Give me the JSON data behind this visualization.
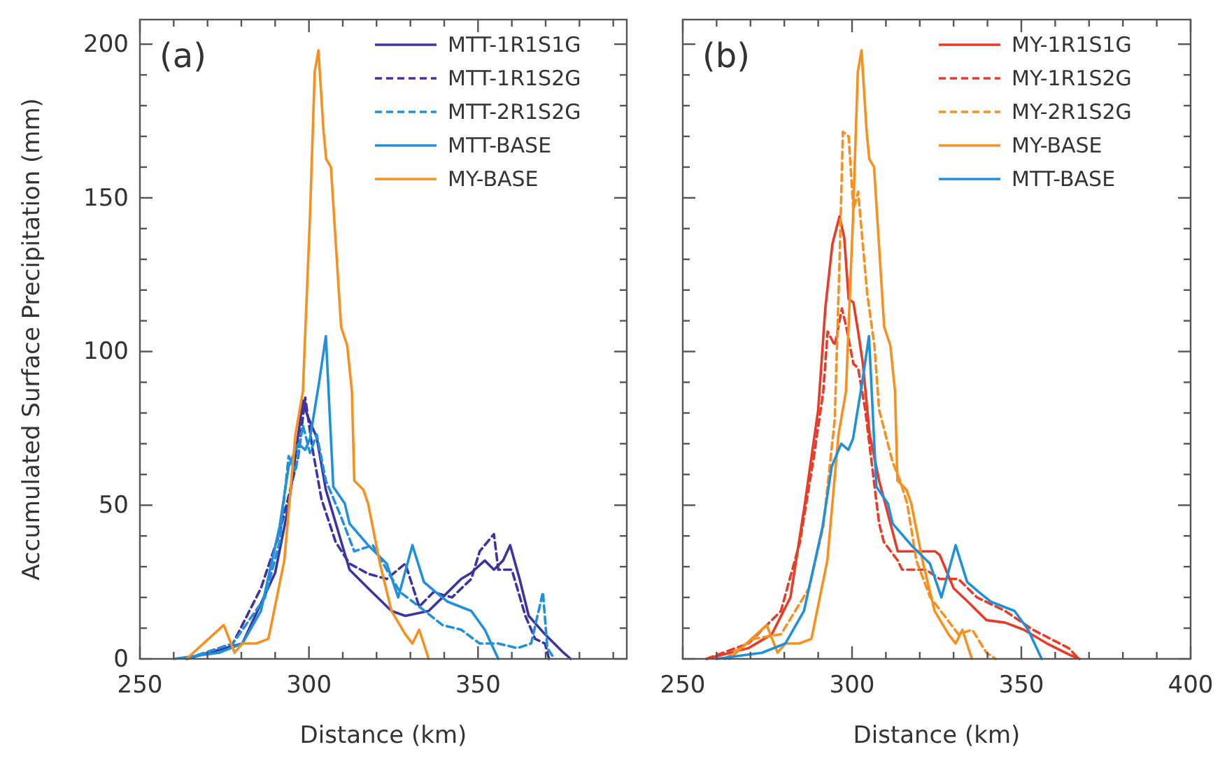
{
  "chart_data": [
    {
      "type": "line",
      "xlabel": "Distance (km)",
      "ylabel": "Accumulated Surface Precipitation (mm)",
      "annotations": [
        "(a)"
      ],
      "legend": "top right",
      "grid": false,
      "xlim": [
        250,
        394
      ],
      "xticks": [
        250,
        {
          "value": 260,
          "label": null
        },
        {
          "value": 270,
          "label": null
        },
        {
          "value": 280,
          "label": null
        },
        {
          "value": 290,
          "label": null
        },
        300,
        {
          "value": 310,
          "label": null
        },
        {
          "value": 320,
          "label": null
        },
        {
          "value": 330,
          "label": null
        },
        {
          "value": 340,
          "label": null
        },
        350,
        {
          "value": 360,
          "label": null
        },
        {
          "value": 370,
          "label": null
        },
        {
          "value": 380,
          "label": null
        },
        {
          "value": 390,
          "label": null
        }
      ],
      "ylim": [
        0,
        208
      ],
      "yticks": [
        0,
        {
          "value": 10,
          "label": null
        },
        {
          "value": 20,
          "label": null
        },
        {
          "value": 30,
          "label": null
        },
        {
          "value": 40,
          "label": null
        },
        50,
        {
          "value": 60,
          "label": null
        },
        {
          "value": 70,
          "label": null
        },
        {
          "value": 80,
          "label": null
        },
        {
          "value": 90,
          "label": null
        },
        100,
        {
          "value": 110,
          "label": null
        },
        {
          "value": 120,
          "label": null
        },
        {
          "value": 130,
          "label": null
        },
        {
          "value": 140,
          "label": null
        },
        150,
        {
          "value": 160,
          "label": null
        },
        {
          "value": 170,
          "label": null
        },
        {
          "value": 180,
          "label": null
        },
        {
          "value": 190,
          "label": null
        },
        200
      ],
      "series": [
        {
          "name": "MTT-1R1S1G",
          "color": "#3c34a0",
          "line_style": "solid",
          "x": [
            263.8,
            280.3,
            290,
            294,
            298.2,
            299.6,
            302.3,
            305,
            312,
            317.5,
            324.4,
            328.5,
            335.4,
            339.5,
            345,
            348,
            352,
            354.7,
            357.4,
            359.5,
            362.3,
            365,
            369.8,
            375.3,
            377.4
          ],
          "values": [
            0,
            5,
            28,
            50,
            84,
            79,
            72,
            55,
            29,
            23,
            15.6,
            14,
            15.6,
            20,
            26,
            28,
            32,
            29,
            32,
            37,
            26,
            14,
            8,
            2,
            0
          ]
        },
        {
          "name": "MTT-1R1S2G",
          "color": "#3c34a0",
          "line_style": "dashed",
          "x": [
            263.8,
            277.5,
            285.8,
            291.3,
            296.8,
            298.9,
            301,
            303.7,
            307.9,
            312,
            317.5,
            323,
            328.5,
            332.6,
            336.8,
            342.3,
            348,
            350.5,
            354.7,
            356,
            360,
            364,
            366.9,
            369.8,
            371
          ],
          "values": [
            0,
            5,
            23,
            41,
            65.6,
            85,
            68.6,
            52,
            38,
            31,
            27.7,
            26,
            31,
            17,
            21.7,
            20,
            26,
            35,
            40.6,
            29,
            29,
            14,
            6.5,
            5,
            0
          ]
        },
        {
          "name": "MTT-2R1S2G",
          "color": "#1e90dc",
          "line_style": "dashed",
          "x": [
            263.8,
            277.5,
            287,
            291.3,
            294,
            296,
            298.2,
            300.3,
            302.3,
            305,
            309.2,
            313.4,
            318.9,
            323,
            327,
            332.6,
            339.5,
            345,
            350.5,
            356,
            361.6,
            365.7,
            369.2,
            370.5,
            372.6
          ],
          "values": [
            0,
            5,
            20,
            38,
            66,
            61,
            76,
            67,
            73,
            58,
            47,
            35,
            37,
            29,
            21.7,
            17,
            11,
            9.5,
            5,
            5,
            3.5,
            5,
            21.7,
            3.5,
            0
          ]
        },
        {
          "name": "MTT-BASE",
          "color": "#1e90dc",
          "line_style": "solid",
          "x": [
            260,
            273.4,
            280.3,
            285.8,
            291.3,
            294,
            296.8,
            298.9,
            300.3,
            303,
            305,
            307.2,
            310.6,
            312,
            317.5,
            323,
            326.4,
            330.6,
            334,
            337.5,
            341,
            348,
            352,
            356
          ],
          "values": [
            0,
            2,
            5,
            15.6,
            43,
            62.6,
            70,
            68,
            71.7,
            90,
            105,
            56,
            50.5,
            44,
            37,
            31,
            20,
            37,
            25,
            21.7,
            18.6,
            15.6,
            9.5,
            0
          ]
        },
        {
          "name": "MY-BASE",
          "color": "#f7901e",
          "line_style": "solid",
          "x": [
            263.8,
            274.8,
            278,
            280.3,
            284.4,
            288,
            292.7,
            296,
            298.2,
            300.3,
            301.7,
            302.8,
            304.3,
            305.1,
            306.5,
            309.5,
            311.3,
            312.7,
            313.4,
            316.1,
            317.5,
            321,
            324.4,
            328.5,
            330.6,
            332.6,
            335.4
          ],
          "values": [
            0,
            11,
            2,
            5,
            5,
            6.5,
            32,
            73,
            87,
            144,
            191,
            198,
            171.7,
            162.6,
            160,
            108,
            102,
            87,
            58,
            55,
            50.5,
            31,
            15.6,
            8,
            5,
            9.5,
            0
          ]
        }
      ]
    },
    {
      "type": "line",
      "xlabel": "Distance (km)",
      "annotations": [
        "(b)"
      ],
      "legend": "top right",
      "grid": false,
      "tick_labels": "x",
      "xlim": [
        250,
        400
      ],
      "xticks": [
        250,
        {
          "value": 260,
          "label": null
        },
        {
          "value": 270,
          "label": null
        },
        {
          "value": 280,
          "label": null
        },
        {
          "value": 290,
          "label": null
        },
        300,
        {
          "value": 310,
          "label": null
        },
        {
          "value": 320,
          "label": null
        },
        {
          "value": 330,
          "label": null
        },
        {
          "value": 340,
          "label": null
        },
        350,
        {
          "value": 360,
          "label": null
        },
        {
          "value": 370,
          "label": null
        },
        {
          "value": 380,
          "label": null
        },
        {
          "value": 390,
          "label": null
        },
        400
      ],
      "ylim": [
        0,
        208
      ],
      "yticks": [
        0,
        {
          "value": 10,
          "label": null
        },
        {
          "value": 20,
          "label": null
        },
        {
          "value": 30,
          "label": null
        },
        {
          "value": 40,
          "label": null
        },
        50,
        {
          "value": 60,
          "label": null
        },
        {
          "value": 70,
          "label": null
        },
        {
          "value": 80,
          "label": null
        },
        {
          "value": 90,
          "label": null
        },
        100,
        {
          "value": 110,
          "label": null
        },
        {
          "value": 120,
          "label": null
        },
        {
          "value": 130,
          "label": null
        },
        {
          "value": 140,
          "label": null
        },
        150,
        {
          "value": 160,
          "label": null
        },
        {
          "value": 170,
          "label": null
        },
        {
          "value": 180,
          "label": null
        },
        {
          "value": 190,
          "label": null
        },
        200
      ],
      "series": [
        {
          "name": "MY-1R1S1G",
          "color": "#e83c28",
          "line_style": "solid",
          "x": [
            257,
            269.4,
            276.3,
            281.8,
            286,
            290,
            292.1,
            294.2,
            296.3,
            297.7,
            299,
            300.4,
            301.8,
            303.2,
            305.2,
            308,
            313.5,
            317.6,
            324.5,
            325.9,
            330,
            334.2,
            339.7,
            345.2,
            350.7,
            357.6,
            364.5,
            367.2
          ],
          "values": [
            0,
            3.5,
            8,
            20,
            50,
            81,
            114,
            135,
            144,
            137,
            117,
            116,
            106.5,
            96,
            73,
            58,
            35,
            35,
            35,
            33.8,
            23,
            18.6,
            12.6,
            11.8,
            9.5,
            5,
            1.2,
            0
          ]
        },
        {
          "name": "MY-1R1S2G",
          "color": "#e83c28",
          "line_style": "dashed",
          "x": [
            257,
            269.4,
            279,
            284.6,
            288.7,
            291.5,
            292.8,
            294.9,
            297,
            298.3,
            300.4,
            301.8,
            303.9,
            308,
            309.4,
            313.5,
            314.8,
            321.8,
            325.9,
            331.4,
            336.9,
            345.2,
            353.4,
            364,
            367
          ],
          "values": [
            0,
            5,
            15.6,
            38,
            65.6,
            87,
            106.5,
            102,
            114,
            108,
            96,
            94.6,
            81,
            44,
            38,
            32,
            29,
            29,
            26,
            26,
            20,
            15.6,
            9.5,
            3.5,
            0
          ]
        },
        {
          "name": "MY-2R1S2G",
          "color": "#f7901e",
          "line_style": "dashed",
          "x": [
            262.5,
            270.8,
            279,
            287.3,
            291.5,
            294.9,
            296.3,
            297.3,
            299,
            300.4,
            301.8,
            304.5,
            306.6,
            308,
            312,
            314.2,
            316.3,
            319,
            323.1,
            327.3,
            331.4,
            335.5,
            339.7,
            342.4
          ],
          "values": [
            0,
            6.5,
            8,
            23,
            43,
            78,
            129,
            171.5,
            170,
            146,
            152,
            118.6,
            102,
            81,
            64,
            58,
            50.5,
            32,
            20,
            14,
            8,
            9.5,
            2,
            0
          ]
        },
        {
          "name": "MY-BASE",
          "color": "#f7901e",
          "line_style": "solid",
          "x": [
            263.8,
            274.8,
            278,
            280.3,
            284.4,
            288,
            292.7,
            296,
            298.2,
            300.3,
            301.7,
            302.8,
            304.3,
            305.1,
            306.5,
            309.5,
            311.3,
            312.7,
            313.4,
            316.1,
            317.5,
            321,
            324.4,
            328.5,
            330.6,
            332.6,
            335.4
          ],
          "values": [
            0,
            11,
            2,
            5,
            5,
            6.5,
            32,
            73,
            87,
            144,
            191,
            198,
            171.7,
            162.6,
            160,
            108,
            102,
            87,
            58,
            55,
            50.5,
            31,
            15.6,
            8,
            5,
            9.5,
            0
          ]
        },
        {
          "name": "MTT-BASE",
          "color": "#1e90dc",
          "line_style": "solid",
          "x": [
            260,
            273.4,
            280.3,
            285.8,
            291.3,
            294,
            296.8,
            298.9,
            300.3,
            303,
            305,
            307.2,
            310.6,
            312,
            317.5,
            323,
            326.4,
            330.6,
            334,
            337.5,
            341,
            348,
            352,
            356
          ],
          "values": [
            0,
            2,
            5,
            15.6,
            43,
            62.6,
            70,
            68,
            71.7,
            90,
            105,
            56,
            50.5,
            44,
            37,
            31,
            20,
            37,
            25,
            21.7,
            18.6,
            15.6,
            9.5,
            0
          ]
        }
      ]
    }
  ]
}
